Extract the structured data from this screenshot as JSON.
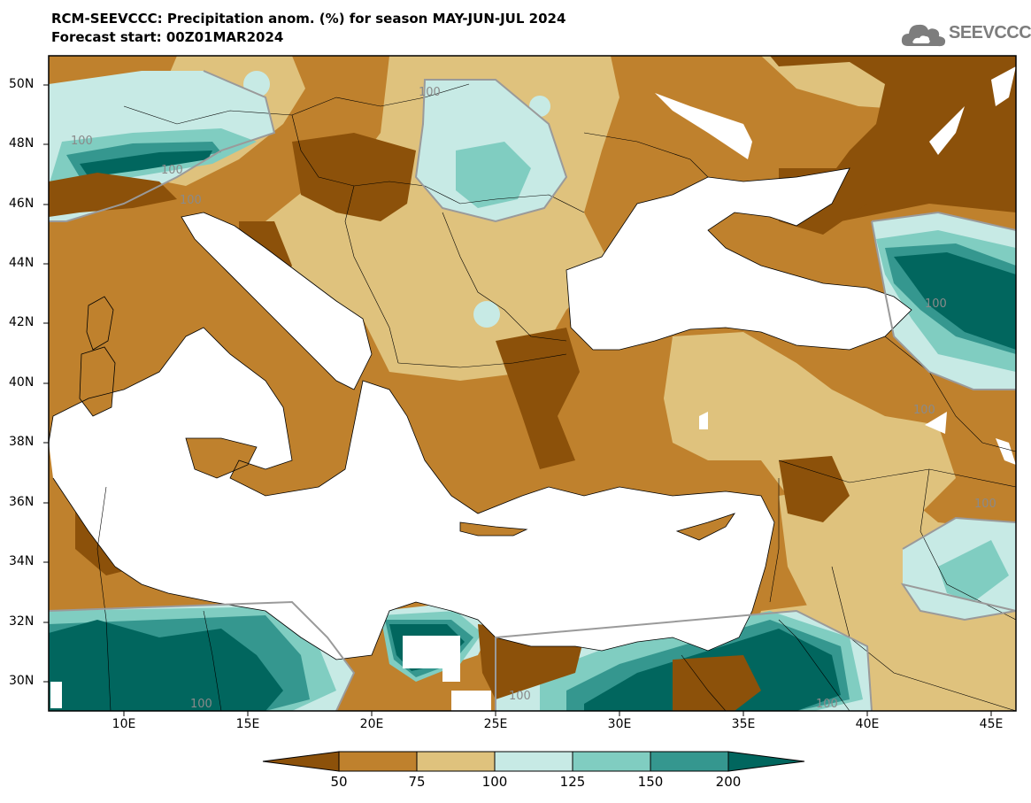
{
  "title": {
    "line1": "RCM-SEEVCCC: Precipitation anom. (%) for season MAY-JUN-JUL 2024",
    "line2": "Forecast start: 00Z01MAR2024"
  },
  "logo": {
    "text": "SEEVCCC",
    "icon": "cloud-icon"
  },
  "map": {
    "lat_labels": [
      "50N",
      "48N",
      "46N",
      "44N",
      "42N",
      "40N",
      "38N",
      "36N",
      "34N",
      "32N",
      "30N"
    ],
    "lon_labels": [
      "10E",
      "15E",
      "20E",
      "25E",
      "30E",
      "35E",
      "40E",
      "45E"
    ],
    "contour_label": "100",
    "colors": {
      "lt50": "#8c510a",
      "50_75": "#bf812d",
      "75_100": "#dfc27d",
      "100_125": "#c7eae5",
      "125_150": "#80cdc1",
      "150_200": "#35978f",
      "gt200": "#01665e",
      "sea": "#ffffff"
    }
  },
  "colorbar": {
    "labels": [
      "50",
      "75",
      "100",
      "125",
      "150",
      "200"
    ],
    "colors": [
      "#8c510a",
      "#bf812d",
      "#dfc27d",
      "#c7eae5",
      "#80cdc1",
      "#35978f",
      "#01665e"
    ]
  }
}
